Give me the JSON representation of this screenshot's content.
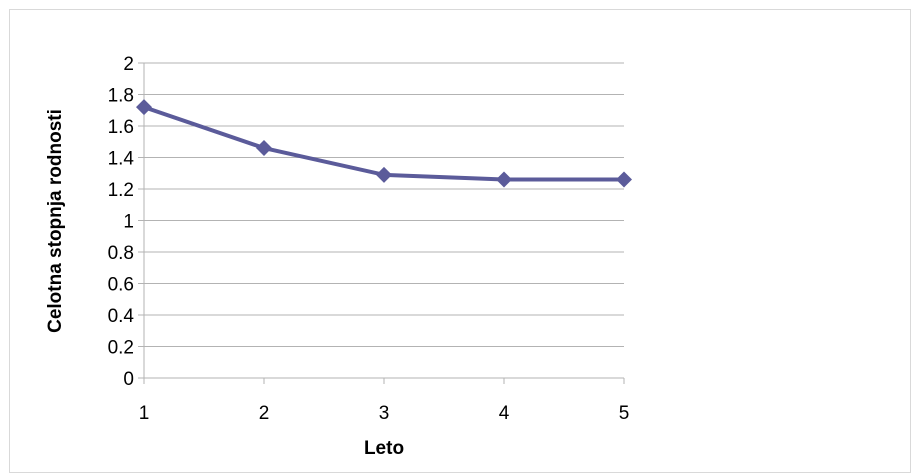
{
  "chart_data": {
    "type": "line",
    "x": [
      1,
      2,
      3,
      4,
      5
    ],
    "series": [
      {
        "values": [
          1.72,
          1.46,
          1.29,
          1.26,
          1.26
        ],
        "color": "#5b5b9a"
      }
    ],
    "xlabel": "Leto",
    "ylabel": "Celotna stopnja rodnosti",
    "xlim": [
      1,
      5
    ],
    "ylim": [
      0,
      2
    ],
    "x_ticks": [
      "1",
      "2",
      "3",
      "4",
      "5"
    ],
    "y_ticks": [
      "0",
      "0.2",
      "0.4",
      "0.6",
      "0.8",
      "1",
      "1.2",
      "1.4",
      "1.6",
      "1.8",
      "2"
    ],
    "grid": true,
    "legend": "none",
    "marker": "diamond"
  }
}
